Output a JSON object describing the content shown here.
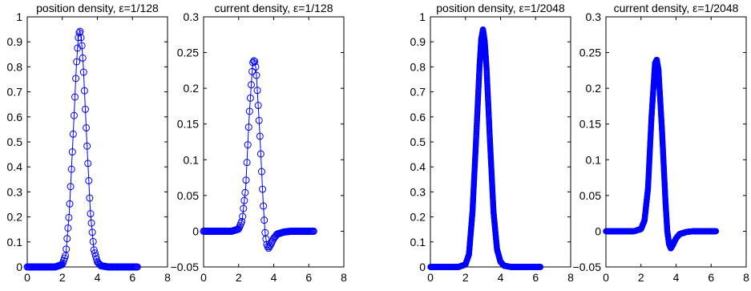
{
  "colors": {
    "series": "#0000ff",
    "axes": "#000000",
    "background": "#ffffff"
  },
  "chart_data": [
    {
      "type": "line",
      "title": "position density, ε=1/128",
      "xlabel": "",
      "ylabel": "",
      "xlim": [
        0,
        8
      ],
      "ylim": [
        0,
        1
      ],
      "xticks": [
        0,
        2,
        4,
        6,
        8
      ],
      "yticks": [
        0,
        0.1,
        0.2,
        0.3,
        0.4,
        0.5,
        0.6,
        0.7,
        0.8,
        0.9,
        1
      ],
      "ytick_labels": [
        "0",
        "0.1",
        "0.2",
        "0.3",
        "0.4",
        "0.5",
        "0.6",
        "0.7",
        "0.8",
        "0.9",
        "1"
      ],
      "grid": false,
      "markers": "circle",
      "marker_count": 128,
      "x": [
        0,
        1.6,
        2.0,
        2.2,
        2.4,
        2.6,
        2.8,
        2.9,
        3.0,
        3.1,
        3.2,
        3.4,
        3.6,
        3.8,
        4.0,
        4.2,
        4.6,
        6.28
      ],
      "y": [
        0,
        0,
        0.01,
        0.05,
        0.22,
        0.5,
        0.8,
        0.91,
        0.95,
        0.9,
        0.8,
        0.5,
        0.22,
        0.07,
        0.02,
        0.005,
        0,
        0
      ]
    },
    {
      "type": "line",
      "title": "current density, ε=1/128",
      "xlabel": "",
      "ylabel": "",
      "xlim": [
        0,
        8
      ],
      "ylim": [
        -0.05,
        0.3
      ],
      "xticks": [
        0,
        2,
        4,
        6,
        8
      ],
      "yticks": [
        -0.05,
        0,
        0.05,
        0.1,
        0.15,
        0.2,
        0.25,
        0.3
      ],
      "ytick_labels": [
        "−0.05",
        "0",
        "0.05",
        "0.1",
        "0.15",
        "0.2",
        "0.25",
        "0.3"
      ],
      "grid": false,
      "markers": "circle",
      "marker_count": 128,
      "x": [
        0,
        1.6,
        2.0,
        2.2,
        2.4,
        2.6,
        2.8,
        2.9,
        3.0,
        3.2,
        3.4,
        3.5,
        3.6,
        3.7,
        3.8,
        4.0,
        4.2,
        4.6,
        5.0,
        6.28
      ],
      "y": [
        0,
        0,
        0.003,
        0.015,
        0.06,
        0.16,
        0.235,
        0.24,
        0.225,
        0.14,
        0.04,
        0,
        -0.018,
        -0.024,
        -0.02,
        -0.01,
        -0.004,
        -0.001,
        0,
        0
      ]
    },
    {
      "type": "line",
      "title": "position density, ε=1/2048",
      "xlabel": "",
      "ylabel": "",
      "xlim": [
        0,
        8
      ],
      "ylim": [
        0,
        1
      ],
      "xticks": [
        0,
        2,
        4,
        6,
        8
      ],
      "yticks": [
        0,
        0.1,
        0.2,
        0.3,
        0.4,
        0.5,
        0.6,
        0.7,
        0.8,
        0.9,
        1
      ],
      "ytick_labels": [
        "0",
        "0.1",
        "0.2",
        "0.3",
        "0.4",
        "0.5",
        "0.6",
        "0.7",
        "0.8",
        "0.9",
        "1"
      ],
      "grid": false,
      "markers": "circle",
      "marker_count": 2048,
      "x": [
        0,
        1.6,
        2.0,
        2.2,
        2.4,
        2.6,
        2.8,
        2.9,
        3.0,
        3.1,
        3.2,
        3.4,
        3.6,
        3.8,
        4.0,
        4.2,
        4.6,
        6.28
      ],
      "y": [
        0,
        0,
        0.01,
        0.05,
        0.22,
        0.5,
        0.8,
        0.91,
        0.95,
        0.9,
        0.8,
        0.5,
        0.22,
        0.07,
        0.02,
        0.005,
        0,
        0
      ]
    },
    {
      "type": "line",
      "title": "current density, ε=1/2048",
      "xlabel": "",
      "ylabel": "",
      "xlim": [
        0,
        8
      ],
      "ylim": [
        -0.05,
        0.3
      ],
      "xticks": [
        0,
        2,
        4,
        6,
        8
      ],
      "yticks": [
        -0.05,
        0,
        0.05,
        0.1,
        0.15,
        0.2,
        0.25,
        0.3
      ],
      "ytick_labels": [
        "−0.05",
        "0",
        "0.05",
        "0.1",
        "0.15",
        "0.2",
        "0.25",
        "0.3"
      ],
      "grid": false,
      "markers": "circle",
      "marker_count": 2048,
      "x": [
        0,
        1.6,
        2.0,
        2.2,
        2.4,
        2.6,
        2.8,
        2.9,
        3.0,
        3.2,
        3.4,
        3.5,
        3.6,
        3.7,
        3.8,
        4.0,
        4.2,
        4.6,
        5.0,
        6.28
      ],
      "y": [
        0,
        0,
        0.003,
        0.015,
        0.06,
        0.16,
        0.235,
        0.24,
        0.225,
        0.14,
        0.04,
        0,
        -0.018,
        -0.024,
        -0.02,
        -0.01,
        -0.004,
        -0.001,
        0,
        0
      ]
    }
  ]
}
